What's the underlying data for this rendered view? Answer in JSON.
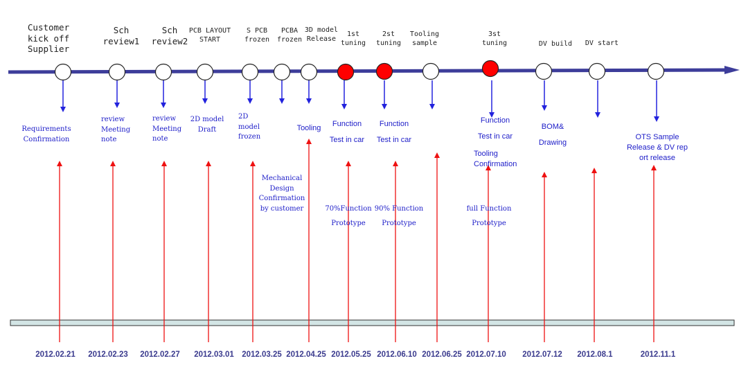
{
  "colors": {
    "timeline": "#3d3d9a",
    "milestone_fill": "#ffffff",
    "tuning_fill": "#ff0000",
    "note_text": "#1c1cc8",
    "date_text": "#3b3b8e",
    "red_arrow": "#ee1111",
    "blue_arrow": "#2222dd",
    "bottom_bar": "#d3e5e5"
  },
  "milestones": [
    {
      "label": "Customer\nkick off\nSupplier",
      "note": "Requirements\nConfirmation",
      "date": "2012.02.21",
      "kind": "normal"
    },
    {
      "label": "Sch\nreview1",
      "note": "review\nMeeting\nnote",
      "date": "2012.02.23",
      "kind": "normal"
    },
    {
      "label": "Sch\nreview2",
      "note": "review\nMeeting\nnote",
      "date": "2012.02.27",
      "kind": "normal"
    },
    {
      "label": "PCB LAYOUT\nSTART",
      "note": "2D model\nDraft",
      "date": "2012.03.01",
      "kind": "normal"
    },
    {
      "label": "S PCB\nfrozen",
      "note": "2D\nmodel\nfrozen",
      "note2": "Mechanical\nDesign\nConfirmation\nby customer",
      "date": "2012.03.25",
      "kind": "normal"
    },
    {
      "label": "PCBA\nfrozen",
      "kind": "normal"
    },
    {
      "label": "3D model\nRelease",
      "note": "Tooling",
      "date": "2012.04.25",
      "kind": "normal"
    },
    {
      "label": "1st\ntuning",
      "note": "Function\nTest in car",
      "note2": "70%Function\nPrototype",
      "date": "2012.05.25",
      "kind": "tuning"
    },
    {
      "label": "2st\ntuning",
      "note": "Function\nTest in car",
      "note2": "90% Function\nPrototype",
      "date": "2012.06.10",
      "kind": "tuning"
    },
    {
      "label": "Tooling\nsample",
      "date": "2012.06.25",
      "kind": "normal"
    },
    {
      "label": "3st\ntuning",
      "note": "Function\nTest in car",
      "note2": "Tooling\nConfirmation",
      "note3": "full Function\nPrototype",
      "date": "2012.07.10",
      "kind": "tuning"
    },
    {
      "label": "DV build",
      "note": "BOM&\nDrawing",
      "date": "2012.07.12",
      "kind": "normal"
    },
    {
      "label": "DV start",
      "date": "2012.08.1",
      "kind": "normal"
    },
    {
      "label": "",
      "note": "OTS Sample\nRelease & DV rep\nort release",
      "date": "2012.11.1",
      "kind": "normal"
    }
  ]
}
